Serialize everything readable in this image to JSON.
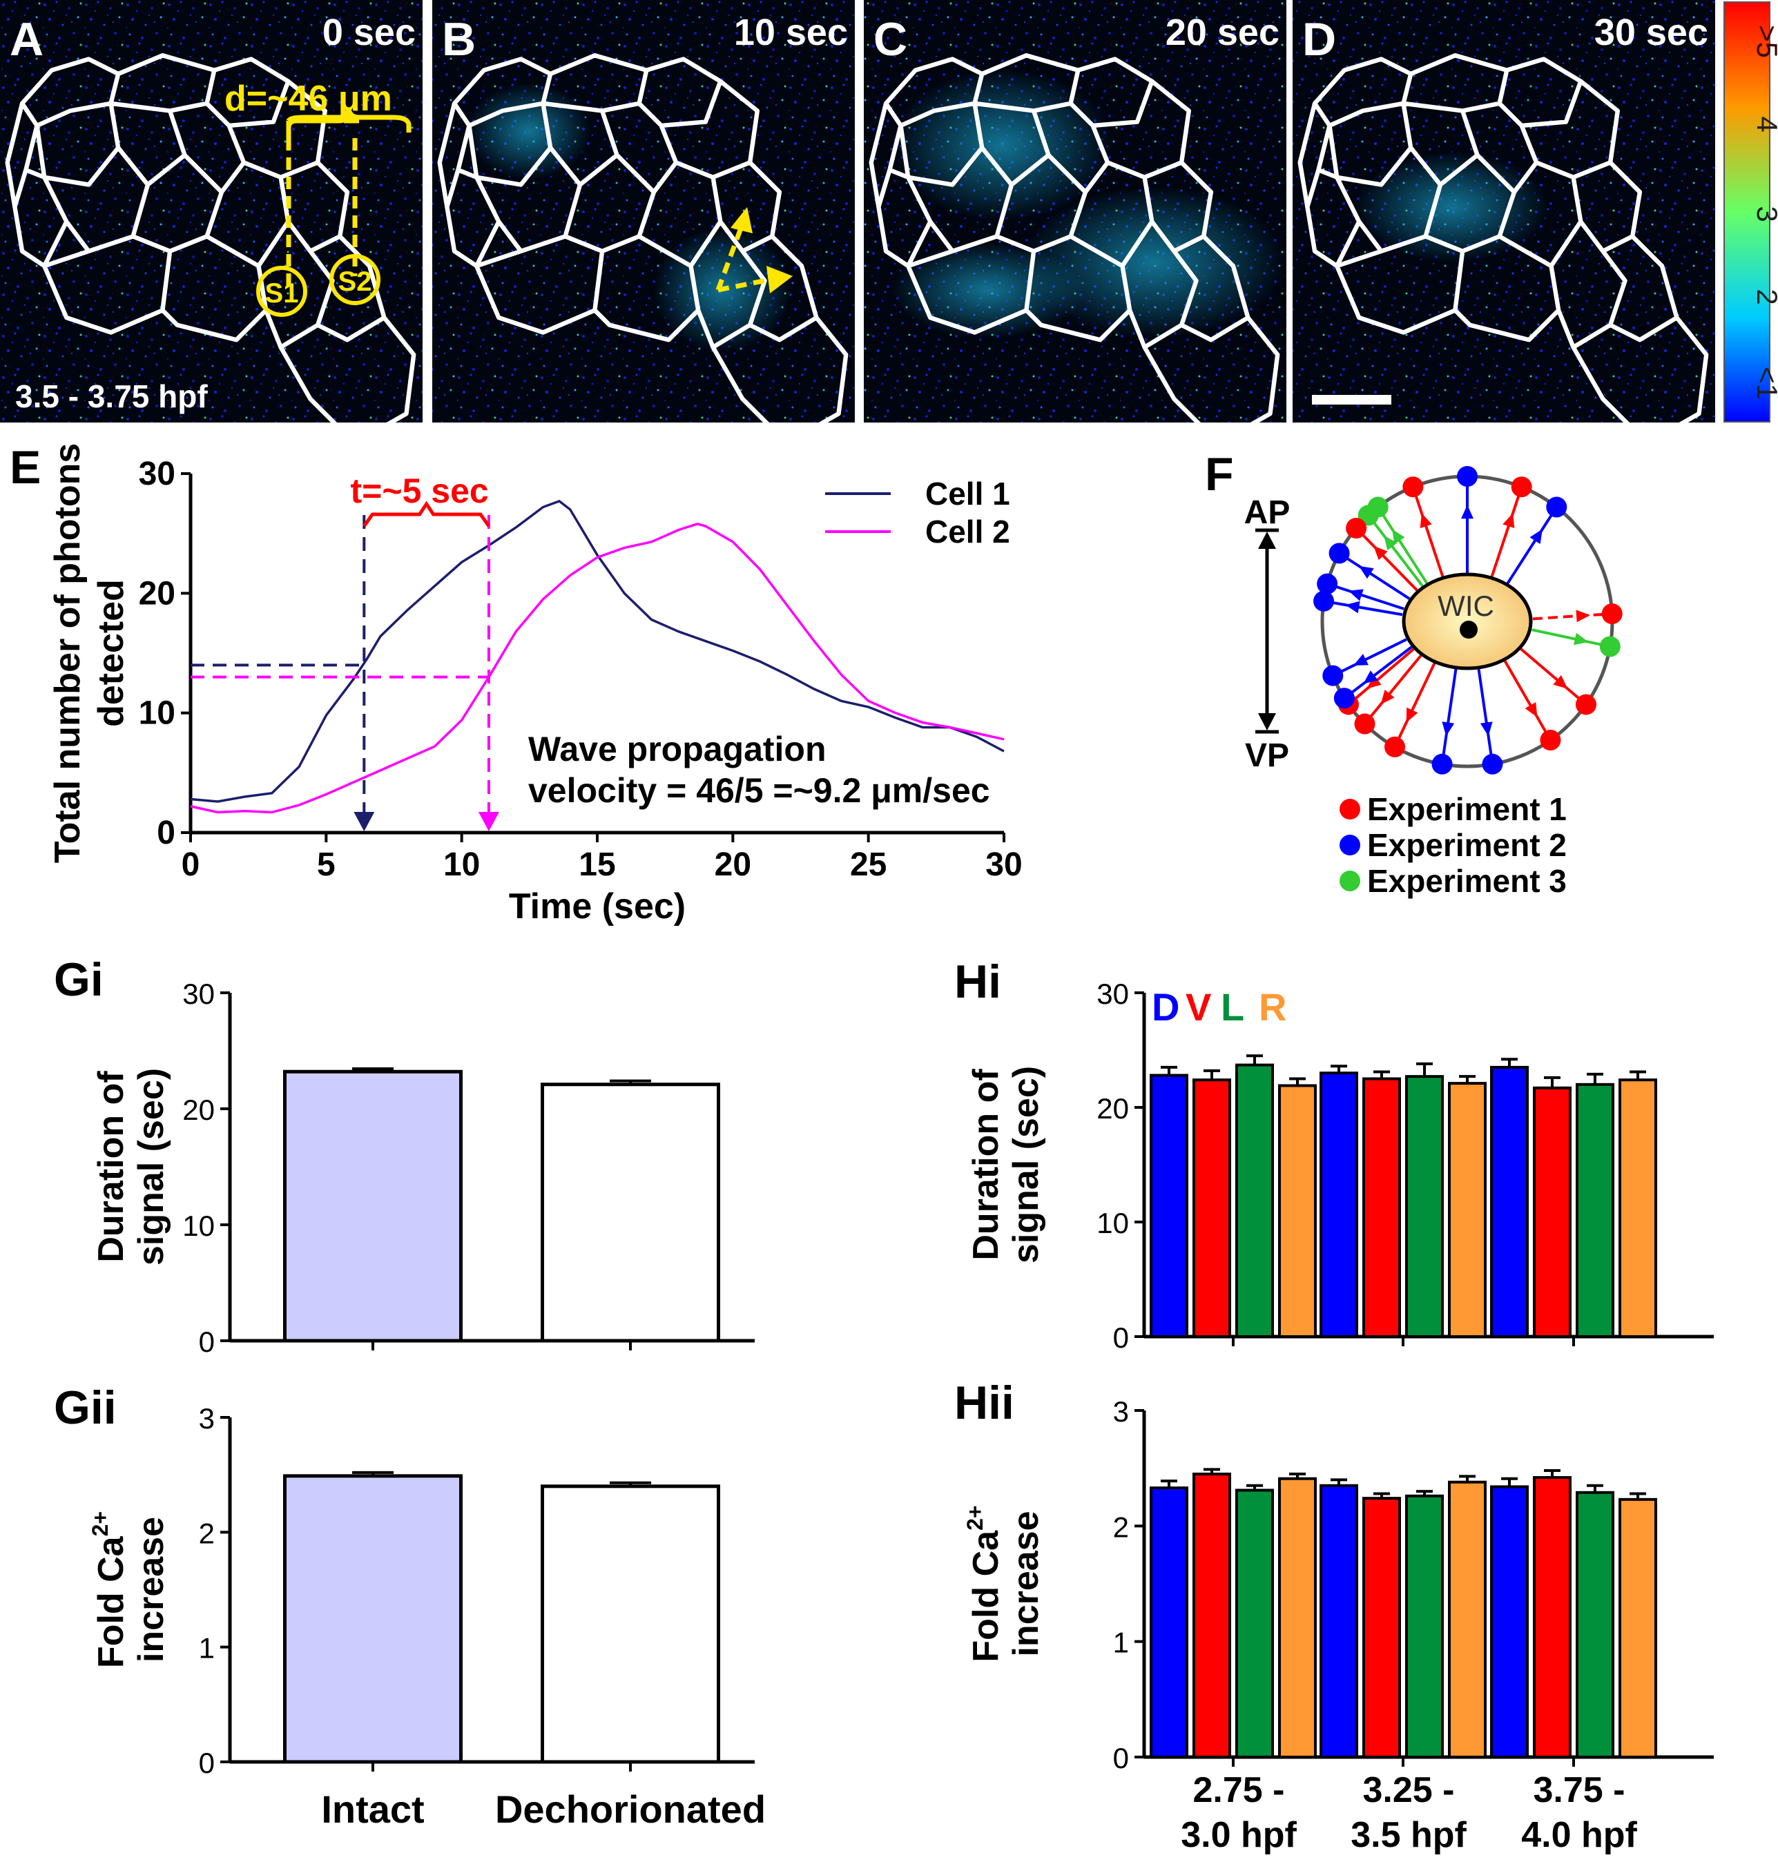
{
  "panels": {
    "A": {
      "letter": "A",
      "time": "0 sec",
      "stage": "3.5 - 3.75 hpf",
      "distance": "d=~46 μm",
      "s1": "S1",
      "s2": "S2"
    },
    "B": {
      "letter": "B",
      "time": "10 sec"
    },
    "C": {
      "letter": "C",
      "time": "20 sec"
    },
    "D": {
      "letter": "D",
      "time": "30 sec"
    }
  },
  "colorbar": {
    "labels": [
      ">5",
      "4",
      "3",
      "2",
      "<1"
    ]
  },
  "colors": {
    "cell1": "#1b1f6b",
    "cell2": "#ff00ff",
    "intact": "#ccccff",
    "dechor": "#ffffff",
    "D": "#0000ff",
    "V": "#ff0000",
    "L": "#008f3a",
    "R": "#ff9933",
    "exp1": "#ff0000",
    "exp2": "#0000ff",
    "exp3": "#33cc33"
  },
  "panelE": {
    "letter": "E",
    "time_label": "t=~5 sec",
    "annotation_line1": "Wave propagation",
    "annotation_line2": "velocity = 46/5 =~9.2 μm/sec"
  },
  "panelF": {
    "letter": "F",
    "center": "WIC",
    "top": "AP",
    "bottom": "VP",
    "legend": [
      "Experiment 1",
      "Experiment 2",
      "Experiment 3"
    ]
  },
  "panelGi": {
    "letter": "Gi"
  },
  "panelGii": {
    "letter": "Gii"
  },
  "panelHi": {
    "letter": "Hi",
    "dvlr": [
      "D",
      "V",
      "L",
      "R"
    ]
  },
  "panelHii": {
    "letter": "Hii"
  },
  "chart_data": [
    {
      "type": "line",
      "id": "E",
      "xlabel": "Time (sec)",
      "ylabel": "Total number of photons detected",
      "xlim": [
        0,
        30
      ],
      "ylim": [
        0,
        30
      ],
      "xticks": [
        0,
        5,
        10,
        15,
        20,
        25,
        30
      ],
      "yticks": [
        0,
        10,
        20,
        30
      ],
      "series": [
        {
          "name": "Cell 1",
          "x": [
            0,
            1,
            2,
            3,
            4,
            5,
            6,
            6.5,
            7,
            8,
            9,
            10,
            11,
            12,
            13,
            13.6,
            14,
            15,
            16,
            17,
            18,
            19,
            20,
            21,
            22,
            23,
            24,
            25,
            26,
            27,
            28,
            29,
            30
          ],
          "y": [
            2.8,
            2.6,
            3.0,
            3.3,
            5.5,
            9.8,
            12.8,
            14.5,
            16.4,
            18.6,
            20.6,
            22.6,
            24.0,
            25.5,
            27.2,
            27.7,
            27.0,
            23.2,
            20.0,
            17.8,
            16.8,
            16.0,
            15.2,
            14.3,
            13.2,
            12.0,
            11.0,
            10.5,
            9.6,
            8.8,
            8.8,
            8.0,
            6.8
          ]
        },
        {
          "name": "Cell 2",
          "x": [
            0,
            1,
            2,
            3,
            4,
            5,
            6,
            7,
            8,
            9,
            10,
            11,
            12,
            13,
            14,
            15,
            16,
            17,
            18,
            18.7,
            19,
            20,
            21,
            22,
            23,
            24,
            25,
            26,
            27,
            28,
            29,
            30
          ],
          "y": [
            2.2,
            1.7,
            1.8,
            1.7,
            2.3,
            3.2,
            4.2,
            5.2,
            6.2,
            7.2,
            9.4,
            13.0,
            16.8,
            19.5,
            21.5,
            23.0,
            23.8,
            24.3,
            25.3,
            25.8,
            25.6,
            24.3,
            22.0,
            19.0,
            16.0,
            13.2,
            11.0,
            10.0,
            9.2,
            8.8,
            8.3,
            7.8
          ]
        }
      ],
      "markers": [
        {
          "x": 6.4,
          "y": 14,
          "series": "Cell 1"
        },
        {
          "x": 11.0,
          "y": 13,
          "series": "Cell 2"
        }
      ]
    },
    {
      "type": "bar",
      "id": "Gi",
      "ylabel": "Duration of signal (sec)",
      "ylim": [
        0,
        30
      ],
      "yticks": [
        0,
        10,
        20,
        30
      ],
      "categories": [
        "Intact",
        "Dechorionated"
      ],
      "values": [
        23.2,
        22.1
      ],
      "errors": [
        0.25,
        0.3
      ]
    },
    {
      "type": "bar",
      "id": "Gii",
      "ylabel": "Fold Ca2+ increase",
      "ylim": [
        0,
        3
      ],
      "yticks": [
        0,
        1,
        2,
        3
      ],
      "categories": [
        "Intact",
        "Dechorionated"
      ],
      "values": [
        2.49,
        2.4
      ],
      "errors": [
        0.03,
        0.03
      ]
    },
    {
      "type": "bar",
      "id": "Hi",
      "ylabel": "Duration of signal (sec)",
      "ylim": [
        0,
        30
      ],
      "yticks": [
        0,
        10,
        20,
        30
      ],
      "categories": [
        "2.75 - 3.0 hpf",
        "3.25 - 3.5 hpf",
        "3.75 - 4.0 hpf"
      ],
      "series": [
        {
          "name": "D",
          "values": [
            22.8,
            23.0,
            23.5
          ],
          "errors": [
            0.7,
            0.6,
            0.7
          ]
        },
        {
          "name": "V",
          "values": [
            22.4,
            22.5,
            21.7
          ],
          "errors": [
            0.8,
            0.6,
            0.9
          ]
        },
        {
          "name": "L",
          "values": [
            23.7,
            22.7,
            22.0
          ],
          "errors": [
            0.8,
            1.1,
            0.9
          ]
        },
        {
          "name": "R",
          "values": [
            21.9,
            22.1,
            22.4
          ],
          "errors": [
            0.6,
            0.6,
            0.7
          ]
        }
      ]
    },
    {
      "type": "bar",
      "id": "Hii",
      "ylabel": "Fold Ca2+ increase",
      "ylim": [
        0,
        3
      ],
      "yticks": [
        0,
        1,
        2,
        3
      ],
      "categories": [
        "2.75 - 3.0 hpf",
        "3.25 - 3.5 hpf",
        "3.75 - 4.0 hpf"
      ],
      "series": [
        {
          "name": "D",
          "values": [
            2.33,
            2.35,
            2.34
          ],
          "errors": [
            0.06,
            0.05,
            0.07
          ]
        },
        {
          "name": "V",
          "values": [
            2.45,
            2.24,
            2.42
          ],
          "errors": [
            0.04,
            0.04,
            0.06
          ]
        },
        {
          "name": "L",
          "values": [
            2.31,
            2.26,
            2.29
          ],
          "errors": [
            0.04,
            0.04,
            0.06
          ]
        },
        {
          "name": "R",
          "values": [
            2.41,
            2.38,
            2.23
          ],
          "errors": [
            0.04,
            0.05,
            0.05
          ]
        }
      ]
    }
  ]
}
